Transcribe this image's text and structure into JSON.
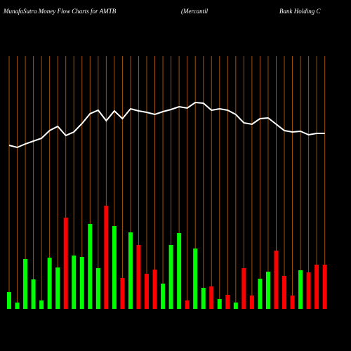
{
  "chart_data": {
    "type": "bar",
    "title_segments": [
      "MunafaSutra  Money Flow  Charts for AMTB",
      "(Mercantil",
      "Bank Holding C"
    ],
    "ylim": [
      0,
      360
    ],
    "grid_color": "#a0520a",
    "series": [
      {
        "type": "bar",
        "values": [
          24,
          9,
          71,
          42,
          12,
          73,
          59,
          130,
          76,
          74,
          121,
          58,
          147,
          118,
          44,
          109,
          91,
          50,
          56,
          36,
          91,
          108,
          12,
          86,
          30,
          32,
          14,
          20,
          9,
          58,
          19,
          43,
          53,
          83,
          47,
          19,
          55,
          52,
          63,
          63
        ],
        "colors": [
          "#00ff00",
          "#00ff00",
          "#00ff00",
          "#00ff00",
          "#00ff00",
          "#00ff00",
          "#00ff00",
          "#ff0000",
          "#00ff00",
          "#00ff00",
          "#00ff00",
          "#00ff00",
          "#ff0000",
          "#00ff00",
          "#ff0000",
          "#00ff00",
          "#ff0000",
          "#ff0000",
          "#ff0000",
          "#00ff00",
          "#00ff00",
          "#00ff00",
          "#ff0000",
          "#00ff00",
          "#00ff00",
          "#ff0000",
          "#00ff00",
          "#ff0000",
          "#00ff00",
          "#ff0000",
          "#ff0000",
          "#00ff00",
          "#00ff00",
          "#ff0000",
          "#ff0000",
          "#ff0000",
          "#00ff00",
          "#ff0000",
          "#ff0000",
          "#ff0000"
        ]
      },
      {
        "type": "line",
        "color": "#ffffff",
        "values": [
          233,
          230,
          235,
          239,
          243,
          254,
          260,
          247,
          252,
          264,
          278,
          283,
          268,
          282,
          271,
          285,
          282,
          280,
          277,
          281,
          284,
          288,
          286,
          294,
          293,
          283,
          285,
          283,
          277,
          265,
          263,
          271,
          272,
          263,
          254,
          252,
          253,
          248,
          250,
          250
        ]
      }
    ]
  }
}
